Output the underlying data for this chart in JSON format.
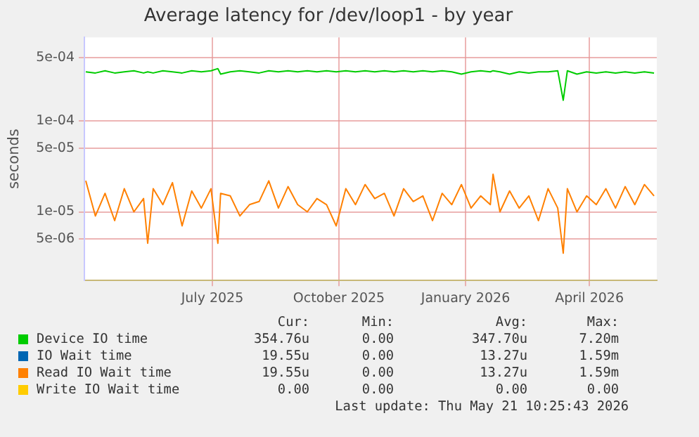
{
  "chart_data": {
    "type": "line",
    "title": "Average latency for /dev/loop1 - by year",
    "ylabel": "seconds",
    "log": "y",
    "grid": true,
    "legend": "bottom",
    "xlim": [
      "2025-03-30",
      "2026-05-20"
    ],
    "xticks": [
      {
        "value": "2025-07-01",
        "label": "July 2025"
      },
      {
        "value": "2025-10-01",
        "label": "October 2025"
      },
      {
        "value": "2026-01-01",
        "label": "January 2026"
      },
      {
        "value": "2026-04-01",
        "label": "April 2026"
      }
    ],
    "ylim": [
      1.75e-06,
      0.00084
    ],
    "yticks": [
      {
        "value": 5e-06,
        "label": "5e-06"
      },
      {
        "value": 1e-05,
        "label": "1e-05"
      },
      {
        "value": 5e-05,
        "label": "5e-05"
      },
      {
        "value": 0.0001,
        "label": "1e-04"
      },
      {
        "value": 0.0005,
        "label": "5e-04"
      }
    ],
    "x": [
      "2025-03-31",
      "2025-04-07",
      "2025-04-14",
      "2025-04-21",
      "2025-04-28",
      "2025-05-05",
      "2025-05-12",
      "2025-05-15",
      "2025-05-19",
      "2025-05-26",
      "2025-06-02",
      "2025-06-09",
      "2025-06-16",
      "2025-06-23",
      "2025-06-30",
      "2025-07-05",
      "2025-07-07",
      "2025-07-14",
      "2025-07-21",
      "2025-07-28",
      "2025-08-04",
      "2025-08-11",
      "2025-08-18",
      "2025-08-25",
      "2025-09-01",
      "2025-09-08",
      "2025-09-15",
      "2025-09-22",
      "2025-09-29",
      "2025-10-06",
      "2025-10-13",
      "2025-10-20",
      "2025-10-27",
      "2025-11-03",
      "2025-11-10",
      "2025-11-17",
      "2025-11-24",
      "2025-12-01",
      "2025-12-08",
      "2025-12-15",
      "2025-12-22",
      "2025-12-29",
      "2026-01-05",
      "2026-01-12",
      "2026-01-19",
      "2026-01-21",
      "2026-01-26",
      "2026-02-02",
      "2026-02-09",
      "2026-02-16",
      "2026-02-23",
      "2026-03-02",
      "2026-03-09",
      "2026-03-13",
      "2026-03-16",
      "2026-03-23",
      "2026-03-30",
      "2026-04-06",
      "2026-04-13",
      "2026-04-20",
      "2026-04-27",
      "2026-05-04",
      "2026-05-11",
      "2026-05-18"
    ],
    "series": [
      {
        "name": "Device IO time",
        "color": "#00cc00",
        "values": [
          0.00035,
          0.00034,
          0.00036,
          0.00034,
          0.00035,
          0.00036,
          0.00034,
          0.00035,
          0.00034,
          0.00036,
          0.00035,
          0.00034,
          0.00036,
          0.00035,
          0.00036,
          0.00038,
          0.00033,
          0.00035,
          0.00036,
          0.00035,
          0.00034,
          0.00036,
          0.00035,
          0.00036,
          0.00035,
          0.00036,
          0.00035,
          0.00036,
          0.00035,
          0.00036,
          0.00035,
          0.00036,
          0.00035,
          0.00036,
          0.00035,
          0.00036,
          0.00035,
          0.00036,
          0.00035,
          0.00036,
          0.00035,
          0.00033,
          0.00035,
          0.00036,
          0.00035,
          0.00036,
          0.00035,
          0.00033,
          0.00035,
          0.00034,
          0.00035,
          0.00035,
          0.00036,
          0.00017,
          0.00036,
          0.00033,
          0.00035,
          0.00034,
          0.00035,
          0.00034,
          0.00035,
          0.00034,
          0.00035,
          0.00034
        ]
      },
      {
        "name": "IO Wait time",
        "color": "#0066b3",
        "values": [
          null,
          null,
          null,
          null,
          null,
          null,
          null,
          null,
          null,
          null,
          null,
          null,
          null,
          null,
          null,
          null,
          null,
          null,
          null,
          null,
          null,
          null,
          null,
          null,
          null,
          null,
          null,
          null,
          null,
          null,
          null,
          null,
          null,
          null,
          null,
          null,
          null,
          null,
          null,
          null,
          null,
          null,
          null,
          null,
          null,
          null,
          null,
          null,
          null,
          null,
          null,
          null,
          null,
          null,
          null,
          null,
          null,
          null,
          null,
          null,
          null,
          null,
          null,
          null
        ]
      },
      {
        "name": "Read IO Wait time",
        "color": "#ff8000",
        "values": [
          2.2e-05,
          9e-06,
          1.6e-05,
          8e-06,
          1.8e-05,
          1e-05,
          1.4e-05,
          4.5e-06,
          1.8e-05,
          1.2e-05,
          2.1e-05,
          7e-06,
          1.7e-05,
          1.1e-05,
          1.8e-05,
          4.5e-06,
          1.6e-05,
          1.5e-05,
          9e-06,
          1.2e-05,
          1.3e-05,
          2.2e-05,
          1.1e-05,
          1.9e-05,
          1.2e-05,
          1e-05,
          1.4e-05,
          1.2e-05,
          7e-06,
          1.8e-05,
          1.2e-05,
          2e-05,
          1.4e-05,
          1.6e-05,
          9e-06,
          1.8e-05,
          1.3e-05,
          1.5e-05,
          8e-06,
          1.6e-05,
          1.2e-05,
          2e-05,
          1.1e-05,
          1.5e-05,
          1.2e-05,
          2.6e-05,
          1e-05,
          1.7e-05,
          1.1e-05,
          1.5e-05,
          8e-06,
          1.8e-05,
          1.1e-05,
          3.5e-06,
          1.8e-05,
          1e-05,
          1.5e-05,
          1.2e-05,
          1.8e-05,
          1.1e-05,
          1.9e-05,
          1.2e-05,
          2e-05,
          1.5e-05
        ]
      },
      {
        "name": "Write IO Wait time",
        "color": "#ffcc00",
        "values": [
          null,
          null,
          null,
          null,
          null,
          null,
          null,
          null,
          null,
          null,
          null,
          null,
          null,
          null,
          null,
          null,
          null,
          null,
          null,
          null,
          null,
          null,
          null,
          null,
          null,
          null,
          null,
          null,
          null,
          null,
          null,
          null,
          null,
          null,
          null,
          null,
          null,
          null,
          null,
          null,
          null,
          null,
          null,
          null,
          null,
          null,
          null,
          null,
          null,
          null,
          null,
          null,
          null,
          null,
          null,
          null,
          null,
          null,
          null,
          null,
          null,
          null,
          null,
          null
        ]
      }
    ],
    "annotations": [
      "Cur:",
      "Min:",
      "Avg:",
      "Max:",
      "354.76u",
      "0.00",
      "347.70u",
      "7.20m",
      "19.55u",
      "0.00",
      "13.27u",
      "1.59m",
      "19.55u",
      "0.00",
      "13.27u",
      "1.59m",
      "0.00",
      "0.00",
      "0.00",
      "0.00",
      "Last update: Thu May 21 10:25:43 2026"
    ]
  }
}
